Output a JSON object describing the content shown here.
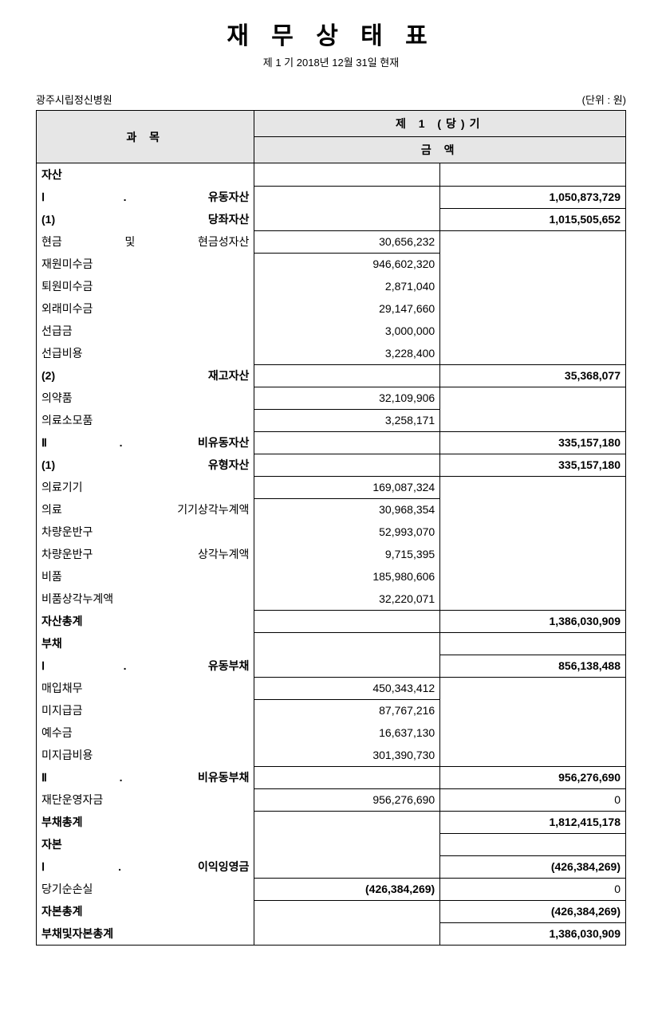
{
  "title": "재 무 상 태 표",
  "subtitle": "제 1 기  2018년 12월 31일 현재",
  "org": "광주시립정신병원",
  "unit": "(단위 : 원)",
  "header": {
    "col_label": "과   목",
    "col_period": "제 1 (당)기",
    "col_amount": "금   액"
  },
  "rows": [
    {
      "label": "자산",
      "ind": 0,
      "a1": "",
      "a2": "",
      "a1box": true,
      "a2box": false
    },
    {
      "label": "Ⅰ. 유동자산",
      "ind": 1,
      "a1": "",
      "a2": "1,050,873,729",
      "a1box": false,
      "a2box": true
    },
    {
      "label": "(1) 당좌자산",
      "ind": 2,
      "a1": "",
      "a2": "1,015,505,652",
      "a1box": false,
      "a2box": true
    },
    {
      "label": "현금 및 현금성자산",
      "ind": 3,
      "a1": "30,656,232",
      "a2": "",
      "a1box": true,
      "a2box": false
    },
    {
      "label": "재원미수금",
      "ind": 3,
      "a1": "946,602,320",
      "a2": "",
      "a1box": false,
      "a2box": false
    },
    {
      "label": "퇴원미수금",
      "ind": 3,
      "a1": "2,871,040",
      "a2": "",
      "a1box": false,
      "a2box": false
    },
    {
      "label": "외래미수금",
      "ind": 3,
      "a1": "29,147,660",
      "a2": "",
      "a1box": false,
      "a2box": false
    },
    {
      "label": "선급금",
      "ind": 3,
      "a1": "3,000,000",
      "a2": "",
      "a1box": false,
      "a2box": false
    },
    {
      "label": "선급비용",
      "ind": 3,
      "a1": "3,228,400",
      "a2": "",
      "a1box": false,
      "a2box": false
    },
    {
      "label": "(2) 재고자산",
      "ind": 2,
      "a1": "",
      "a2": "35,368,077",
      "a1box": true,
      "a2box": true
    },
    {
      "label": "의약품",
      "ind": 3,
      "a1": "32,109,906",
      "a2": "",
      "a1box": true,
      "a2box": false
    },
    {
      "label": "의료소모품",
      "ind": 3,
      "a1": "3,258,171",
      "a2": "",
      "a1box": false,
      "a2box": false
    },
    {
      "label": "Ⅱ. 비유동자산",
      "ind": 1,
      "a1": "",
      "a2": "335,157,180",
      "a1box": true,
      "a2box": true
    },
    {
      "label": "(1) 유형자산",
      "ind": 2,
      "a1": "",
      "a2": "335,157,180",
      "a1box": false,
      "a2box": true
    },
    {
      "label": "의료기기",
      "ind": 3,
      "a1": "169,087,324",
      "a2": "",
      "a1box": true,
      "a2box": false
    },
    {
      "label": "의료 기기상각누계액",
      "ind": 3,
      "a1": "30,968,354",
      "a2": "",
      "a1box": false,
      "a2box": false
    },
    {
      "label": "차량운반구",
      "ind": 3,
      "a1": "52,993,070",
      "a2": "",
      "a1box": false,
      "a2box": false
    },
    {
      "label": "차량운반구 상각누계액",
      "ind": 3,
      "a1": "9,715,395",
      "a2": "",
      "a1box": false,
      "a2box": false
    },
    {
      "label": "비품",
      "ind": 3,
      "a1": "185,980,606",
      "a2": "",
      "a1box": false,
      "a2box": false
    },
    {
      "label": "비품상각누계액",
      "ind": 3,
      "a1": "32,220,071",
      "a2": "",
      "a1box": false,
      "a2box": false
    },
    {
      "label": "자산총계",
      "ind": 0,
      "a1": "",
      "a2": "1,386,030,909",
      "a1box": true,
      "a2box": true
    },
    {
      "label": "부채",
      "ind": 0,
      "a1": "",
      "a2": "",
      "a1box": false,
      "a2box": true
    },
    {
      "label": "Ⅰ. 유동부채",
      "ind": 1,
      "a1": "",
      "a2": "856,138,488",
      "a1box": false,
      "a2box": true
    },
    {
      "label": "매입채무",
      "ind": 3,
      "a1": "450,343,412",
      "a2": "",
      "a1box": true,
      "a2box": false
    },
    {
      "label": "미지급금",
      "ind": 3,
      "a1": "87,767,216",
      "a2": "",
      "a1box": false,
      "a2box": false
    },
    {
      "label": "예수금",
      "ind": 3,
      "a1": "16,637,130",
      "a2": "",
      "a1box": false,
      "a2box": false
    },
    {
      "label": "미지급비용",
      "ind": 3,
      "a1": "301,390,730",
      "a2": "",
      "a1box": false,
      "a2box": false
    },
    {
      "label": "Ⅱ. 비유동부채",
      "ind": 1,
      "a1": "",
      "a2": "956,276,690",
      "a1box": true,
      "a2box": true
    },
    {
      "label": "재단운영자금",
      "ind": 3,
      "a1": "956,276,690",
      "a2": "0",
      "a1box": true,
      "a2boxn": true
    },
    {
      "label": "부채총계",
      "ind": 0,
      "a1": "",
      "a2": "1,812,415,178",
      "a1box": false,
      "a2box": true
    },
    {
      "label": "자본",
      "ind": 0,
      "a1": "",
      "a2": "",
      "a1box": false,
      "a2box": true
    },
    {
      "label": "Ⅰ. 이익잉영금",
      "ind": 1,
      "a1": "",
      "a2": "(426,384,269)",
      "a1box": false,
      "a2box": true
    },
    {
      "label": "당기순손실",
      "ind": 3,
      "a1": "(426,384,269)",
      "a2": "0",
      "a1box": true,
      "a2boxn": true,
      "a1bold": true
    },
    {
      "label": "자본총계",
      "ind": 0,
      "a1": "",
      "a2": "(426,384,269)",
      "a1box": false,
      "a2box": true
    },
    {
      "label": "부채및자본총계",
      "ind": 0,
      "a1": "",
      "a2": "1,386,030,909",
      "a1box": false,
      "a2box": true,
      "last": true
    }
  ]
}
